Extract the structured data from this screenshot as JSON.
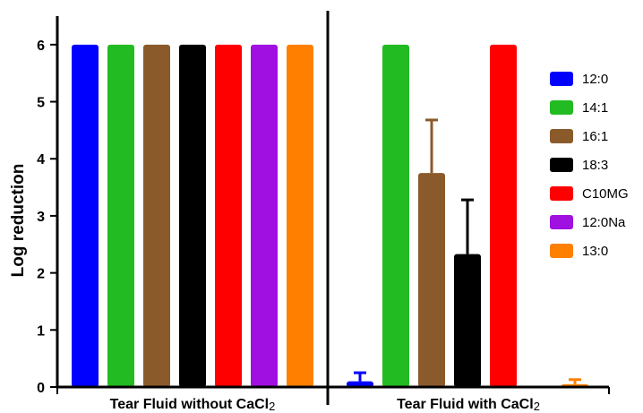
{
  "chart_data": {
    "type": "bar",
    "ylabel": "Log reduction",
    "ylim": [
      0,
      6.5
    ],
    "yticks": [
      "0",
      "1",
      "2",
      "3",
      "4",
      "5",
      "6"
    ],
    "groups": [
      {
        "label": "Tear Fluid without CaCl",
        "subscript": "2"
      },
      {
        "label": "Tear Fluid with CaCl",
        "subscript": "2"
      }
    ],
    "series": [
      {
        "name": "12:0",
        "color": "#0000ff",
        "values": [
          6,
          0.1
        ],
        "errors": [
          null,
          0.15
        ]
      },
      {
        "name": "14:1",
        "color": "#22bb22",
        "values": [
          6,
          6
        ],
        "errors": [
          null,
          null
        ]
      },
      {
        "name": "16:1",
        "color": "#8b5a2b",
        "values": [
          6,
          3.75
        ],
        "errors": [
          null,
          0.93
        ]
      },
      {
        "name": "18:3",
        "color": "#000000",
        "values": [
          6,
          2.33
        ],
        "errors": [
          null,
          0.95
        ]
      },
      {
        "name": "C10MG",
        "color": "#ff0000",
        "values": [
          6,
          6
        ],
        "errors": [
          null,
          null
        ]
      },
      {
        "name": "12:0Na",
        "color": "#a010e0",
        "values": [
          6,
          0
        ],
        "errors": [
          null,
          null
        ]
      },
      {
        "name": "13:0",
        "color": "#ff8000",
        "values": [
          6,
          0.05
        ],
        "errors": [
          null,
          0.08
        ]
      }
    ],
    "legend_position": "right"
  }
}
